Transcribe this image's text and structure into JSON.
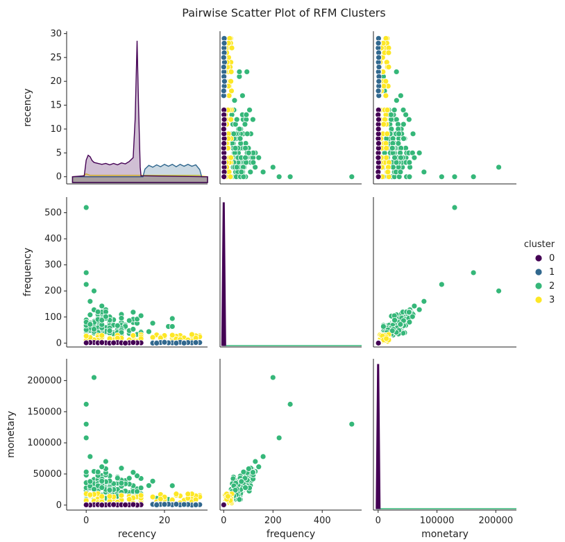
{
  "chart_data": {
    "type": "scatter",
    "title": "Pairwise Scatter Plot of RFM Clusters",
    "variables": [
      "recency",
      "frequency",
      "monetary"
    ],
    "axes": {
      "recency": {
        "range": [
          -5,
          31
        ],
        "ticks": [
          0,
          20
        ],
        "diag_ticks": [
          0,
          5,
          10,
          15,
          20,
          25,
          30
        ]
      },
      "frequency": {
        "range": [
          -15,
          560
        ],
        "ticks": [
          0,
          200,
          400
        ],
        "row_ticks": [
          0,
          100,
          200,
          300,
          400,
          500
        ]
      },
      "monetary": {
        "range": [
          -8000,
          235000
        ],
        "ticks": [
          0,
          100000,
          200000
        ],
        "row_ticks": [
          0,
          50000,
          100000,
          150000,
          200000
        ]
      }
    },
    "legend": {
      "title": "cluster",
      "placement": "right",
      "entries": [
        "0",
        "1",
        "2",
        "3"
      ]
    },
    "colors": {
      "0": "#440154",
      "1": "#31688e",
      "2": "#35b779",
      "3": "#fde725"
    },
    "grid": false,
    "diagonal": "kde",
    "clusters": [
      {
        "name": "0",
        "recency_range": [
          0,
          14
        ],
        "frequency_range": [
          0,
          2
        ],
        "monetary_range": [
          0,
          1000
        ]
      },
      {
        "name": "1",
        "recency_range": [
          15,
          29
        ],
        "frequency_range": [
          0,
          4
        ],
        "monetary_range": [
          0,
          2000
        ]
      },
      {
        "name": "2",
        "recency_range": [
          0,
          22
        ],
        "frequency_range": [
          20,
          520
        ],
        "monetary_range": [
          8000,
          205000
        ]
      },
      {
        "name": "3",
        "recency_range": [
          0,
          29
        ],
        "frequency_range": [
          5,
          40
        ],
        "monetary_range": [
          2000,
          20000
        ]
      }
    ],
    "notable_points": [
      {
        "cluster": "2",
        "recency": 0,
        "frequency": 520,
        "monetary": 130000
      },
      {
        "cluster": "2",
        "recency": 2,
        "frequency": 200,
        "monetary": 205000
      },
      {
        "cluster": "2",
        "recency": 0,
        "frequency": 270,
        "monetary": 162000
      },
      {
        "cluster": "2",
        "recency": 0,
        "frequency": 225,
        "monetary": 108000
      }
    ]
  }
}
